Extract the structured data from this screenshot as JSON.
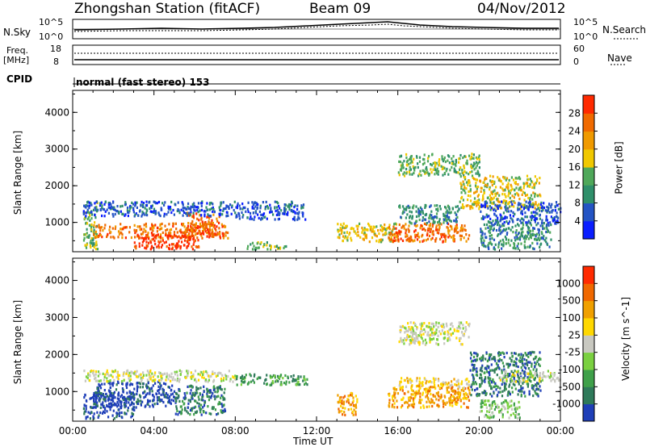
{
  "header": {
    "station": "Zhongshan Station (fitACF)",
    "beam": "Beam 09",
    "date": "04/Nov/2012"
  },
  "noise_panel": {
    "left_label": "N.Sky",
    "left_ticks": [
      "10^5",
      "10^0"
    ],
    "right_label": "N.Search",
    "right_ticks": [
      "10^5",
      "10^0"
    ]
  },
  "freq_panel": {
    "left_label_line1": "Freq.",
    "left_label_line2": "[MHz]",
    "left_ticks": [
      "18",
      "8"
    ],
    "right_label": "Nave",
    "right_ticks": [
      "60",
      "0"
    ]
  },
  "cpid": {
    "label": "CPID",
    "mode": "normal (fast stereo) 153"
  },
  "chart_data": [
    {
      "type": "heatmap",
      "name": "power",
      "ylabel": "Slant Range [km]",
      "xlabel": "Time UT",
      "x_ticks": [
        "00:00",
        "04:00",
        "08:00",
        "12:00",
        "16:00",
        "20:00",
        "00:00"
      ],
      "y_ticks": [
        "1000",
        "2000",
        "3000",
        "4000"
      ],
      "ylim": [
        200,
        4600
      ],
      "xlim_hours": [
        0,
        24
      ],
      "colorbar": {
        "label": "Power [dB]",
        "ticks": [
          "4",
          "8",
          "12",
          "16",
          "20",
          "24",
          "28"
        ],
        "colors": [
          "#0a1eff",
          "#2454c4",
          "#2f8f6a",
          "#4fa85a",
          "#f0c800",
          "#f09a00",
          "#f06a00",
          "#ff2a00"
        ]
      },
      "regions": [
        {
          "t": [
            0.5,
            1.2
          ],
          "r": [
            300,
            1600
          ],
          "level": 3
        },
        {
          "t": [
            1.0,
            7.6
          ],
          "r": [
            600,
            1000
          ],
          "level": 6
        },
        {
          "t": [
            3.0,
            6.2
          ],
          "r": [
            300,
            700
          ],
          "level": 7
        },
        {
          "t": [
            5.5,
            7.2
          ],
          "r": [
            700,
            1300
          ],
          "level": 6
        },
        {
          "t": [
            0.5,
            8.0
          ],
          "r": [
            1200,
            1600
          ],
          "level": 1
        },
        {
          "t": [
            8.0,
            11.5
          ],
          "r": [
            1100,
            1600
          ],
          "level": 1
        },
        {
          "t": [
            8.5,
            10.5
          ],
          "r": [
            300,
            500
          ],
          "level": 3
        },
        {
          "t": [
            13.0,
            16.0
          ],
          "r": [
            500,
            1000
          ],
          "level": 4
        },
        {
          "t": [
            15.5,
            19.5
          ],
          "r": [
            500,
            1000
          ],
          "level": 6
        },
        {
          "t": [
            16.0,
            19.0
          ],
          "r": [
            1000,
            1500
          ],
          "level": 2
        },
        {
          "t": [
            16.0,
            20.0
          ],
          "r": [
            2300,
            2900
          ],
          "level": 3
        },
        {
          "t": [
            19.0,
            23.0
          ],
          "r": [
            1400,
            2300
          ],
          "level": 4
        },
        {
          "t": [
            20.0,
            24.0
          ],
          "r": [
            1000,
            1600
          ],
          "level": 1
        },
        {
          "t": [
            20.0,
            23.5
          ],
          "r": [
            300,
            1000
          ],
          "level": 2
        }
      ]
    },
    {
      "type": "heatmap",
      "name": "velocity",
      "ylabel": "Slant Range [km]",
      "xlabel": "Time UT",
      "x_ticks": [
        "00:00",
        "04:00",
        "08:00",
        "12:00",
        "16:00",
        "20:00",
        "00:00"
      ],
      "y_ticks": [
        "1000",
        "2000",
        "3000",
        "4000"
      ],
      "ylim": [
        200,
        4600
      ],
      "xlim_hours": [
        0,
        24
      ],
      "colorbar": {
        "label": "Velocity [m s^-1]",
        "ticks": [
          "1000",
          "500",
          "100",
          "25",
          "-25",
          "-100",
          "-500",
          "-1000"
        ],
        "colors": [
          "#1f3fb8",
          "#2f7a5a",
          "#3fa04a",
          "#7ad040",
          "#c8c8c0",
          "#ffd800",
          "#f0a000",
          "#f06800",
          "#ff2a00"
        ]
      },
      "regions": [
        {
          "t": [
            0.5,
            3.0
          ],
          "r": [
            300,
            1000
          ],
          "level": 0
        },
        {
          "t": [
            1.0,
            5.0
          ],
          "r": [
            600,
            1300
          ],
          "level": 0
        },
        {
          "t": [
            5.0,
            7.5
          ],
          "r": [
            400,
            1200
          ],
          "level": 1
        },
        {
          "t": [
            0.5,
            8.0
          ],
          "r": [
            1300,
            1600
          ],
          "level": 4
        },
        {
          "t": [
            8.0,
            11.5
          ],
          "r": [
            1200,
            1500
          ],
          "level": 2
        },
        {
          "t": [
            13.0,
            14.0
          ],
          "r": [
            400,
            1000
          ],
          "level": 6
        },
        {
          "t": [
            15.5,
            19.5
          ],
          "r": [
            600,
            1200
          ],
          "level": 6
        },
        {
          "t": [
            16.0,
            19.5
          ],
          "r": [
            1100,
            1400
          ],
          "level": 5
        },
        {
          "t": [
            16.0,
            19.5
          ],
          "r": [
            2300,
            2900
          ],
          "level": 4
        },
        {
          "t": [
            19.5,
            23.0
          ],
          "r": [
            900,
            2100
          ],
          "level": 1
        },
        {
          "t": [
            21.0,
            24.0
          ],
          "r": [
            1300,
            1600
          ],
          "level": 4
        },
        {
          "t": [
            20.0,
            22.0
          ],
          "r": [
            300,
            800
          ],
          "level": 3
        }
      ]
    }
  ]
}
